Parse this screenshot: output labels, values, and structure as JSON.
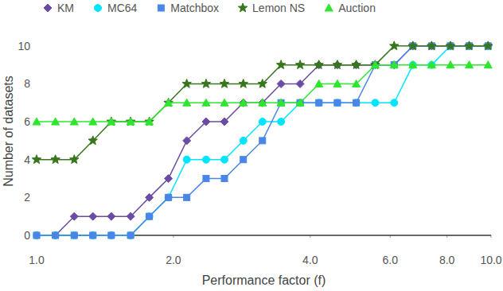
{
  "chart_data": {
    "type": "line",
    "x_label": "Performance factor (f)",
    "y_label": "Number of datasets",
    "x": [
      1,
      1.1,
      1.21,
      1.33,
      1.46,
      1.61,
      1.77,
      1.95,
      2.14,
      2.36,
      2.59,
      2.85,
      3.14,
      3.45,
      3.8,
      4.18,
      4.59,
      5.05,
      5.56,
      6.12,
      6.73,
      7.4,
      8.14,
      8.95,
      9.85
    ],
    "series": [
      {
        "name": "KM",
        "color": "#6a4ca6",
        "marker": "diamond",
        "values": [
          0,
          0,
          1,
          1,
          1,
          1,
          2,
          3,
          5,
          6,
          6,
          7,
          7,
          8,
          8,
          9,
          9,
          9,
          9,
          9,
          10,
          10,
          10,
          10,
          10
        ]
      },
      {
        "name": "MC64",
        "color": "#00e5ff",
        "marker": "circle",
        "values": [
          0,
          0,
          0,
          0,
          0,
          0,
          1,
          2,
          4,
          4,
          4,
          5,
          6,
          6,
          7,
          7,
          7,
          7,
          7,
          7,
          9,
          9,
          10,
          10,
          10
        ]
      },
      {
        "name": "Matchbox",
        "color": "#4a86e8",
        "marker": "square",
        "values": [
          0,
          0,
          0,
          0,
          0,
          0,
          1,
          2,
          2,
          3,
          3,
          4,
          5,
          7,
          7,
          7,
          7,
          7,
          9,
          9,
          10,
          10,
          10,
          10,
          10
        ]
      },
      {
        "name": "Lemon NS",
        "color": "#38761d",
        "marker": "star",
        "values": [
          4,
          4,
          4,
          5,
          6,
          6,
          6,
          7,
          8,
          8,
          8,
          8,
          8,
          9,
          9,
          9,
          9,
          9,
          9,
          10,
          10,
          10,
          10,
          10,
          10
        ]
      },
      {
        "name": "Auction",
        "color": "#2ee62e",
        "marker": "triangle",
        "values": [
          6,
          6,
          6,
          6,
          6,
          6,
          6,
          7,
          7,
          7,
          7,
          7,
          7,
          7,
          7,
          8,
          8,
          8,
          9,
          9,
          9,
          9,
          9,
          9,
          9
        ]
      }
    ],
    "xlim": [
      1,
      10
    ],
    "xticks": [
      {
        "value": 1,
        "label": "1.0"
      },
      {
        "value": 2,
        "label": "2.0"
      },
      {
        "value": 4,
        "label": "4.0"
      },
      {
        "value": 6,
        "label": "6.0"
      },
      {
        "value": 8,
        "label": "8.0"
      },
      {
        "value": 10,
        "label": "10.0"
      }
    ],
    "ylim": [
      0,
      11
    ],
    "yticks": [
      0,
      2,
      4,
      6,
      8,
      10
    ],
    "log": "x",
    "grid": false,
    "legend": "top"
  }
}
